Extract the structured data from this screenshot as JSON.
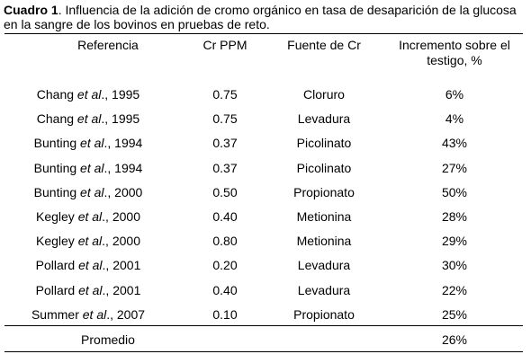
{
  "caption": {
    "label": "Cuadro 1",
    "text": ". Influencia de la adición de cromo orgánico en tasa de desaparición de la glucosa en la sangre de los bovinos en pruebas de reto."
  },
  "headers": {
    "referencia": "Referencia",
    "cr_ppm": "Cr PPM",
    "fuente": "Fuente de Cr",
    "incremento": "Incremento sobre el testigo, %"
  },
  "rows": [
    {
      "author": "Chang ",
      "etal": "et al",
      "year": "., 1995",
      "cr": "0.75",
      "fuente": "Cloruro",
      "inc": "6%"
    },
    {
      "author": "Chang ",
      "etal": "et al",
      "year": "., 1995",
      "cr": "0.75",
      "fuente": "Levadura",
      "inc": "4%"
    },
    {
      "author": "Bunting ",
      "etal": "et al",
      "year": "., 1994",
      "cr": "0.37",
      "fuente": "Picolinato",
      "inc": "43%"
    },
    {
      "author": "Bunting ",
      "etal": "et al",
      "year": "., 1994",
      "cr": "0.37",
      "fuente": "Picolinato",
      "inc": "27%"
    },
    {
      "author": "Bunting ",
      "etal": "et al",
      "year": "., 2000",
      "cr": "0.50",
      "fuente": "Propionato",
      "inc": "50%"
    },
    {
      "author": "Kegley ",
      "etal": "et al",
      "year": "., 2000",
      "cr": "0.40",
      "fuente": "Metionina",
      "inc": "28%"
    },
    {
      "author": "Kegley ",
      "etal": "et al",
      "year": "., 2000",
      "cr": "0.80",
      "fuente": "Metionina",
      "inc": "29%"
    },
    {
      "author": "Pollard ",
      "etal": "et al",
      "year": "., 2001",
      "cr": "0.20",
      "fuente": "Levadura",
      "inc": "30%"
    },
    {
      "author": "Pollard ",
      "etal": "et al",
      "year": "., 2001",
      "cr": "0.40",
      "fuente": "Levadura",
      "inc": "22%"
    },
    {
      "author": "Summer ",
      "etal": "et al",
      "year": "., 2007",
      "cr": "0.10",
      "fuente": "Propionato",
      "inc": "25%"
    }
  ],
  "average": {
    "label": "Promedio",
    "value": "26%"
  }
}
